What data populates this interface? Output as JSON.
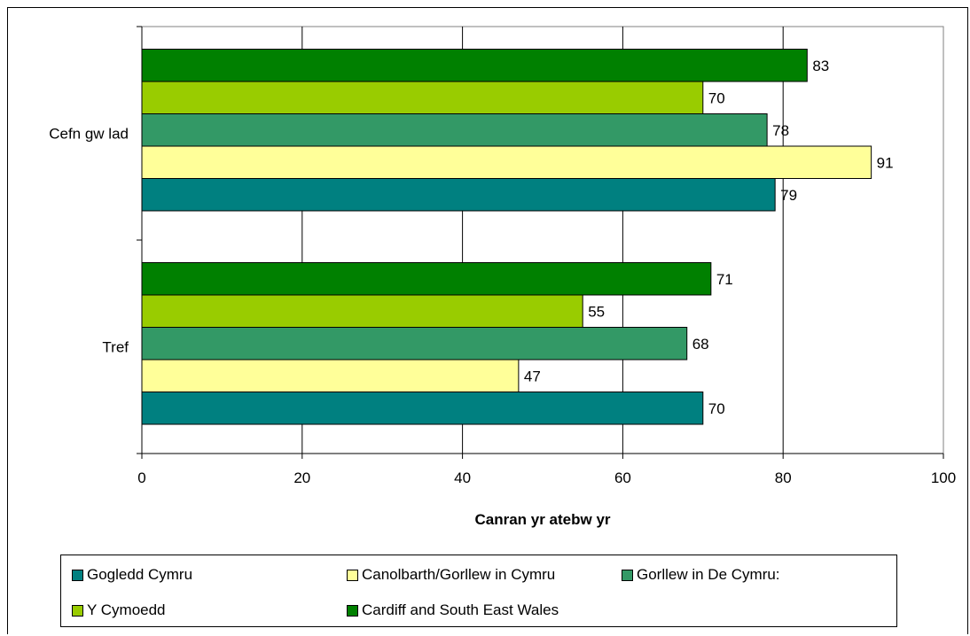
{
  "chart_data": {
    "type": "bar",
    "orientation": "horizontal",
    "categories": [
      "Cefn gw lad",
      "Tref"
    ],
    "series": [
      {
        "name": "Gogledd Cymru",
        "color": "#008080",
        "values": [
          79,
          70
        ]
      },
      {
        "name": "Canolbarth/Gorllew in Cymru",
        "color": "#FFFF99",
        "values": [
          91,
          47
        ]
      },
      {
        "name": "Gorllew in De Cymru:",
        "color": "#339966",
        "values": [
          78,
          68
        ]
      },
      {
        "name": "Y Cymoedd",
        "color": "#99CC00",
        "values": [
          70,
          55
        ]
      },
      {
        "name": "Cardiff and South East Wales",
        "color": "#008000",
        "values": [
          83,
          71
        ]
      }
    ],
    "xlabel": "Canran yr atebw yr",
    "ylabel": "",
    "title": "",
    "xlim": [
      0,
      100
    ],
    "xticks": [
      "0",
      "20",
      "40",
      "60",
      "80",
      "100"
    ],
    "grid": "vertical",
    "legend_position": "bottom",
    "data_labels": true
  }
}
